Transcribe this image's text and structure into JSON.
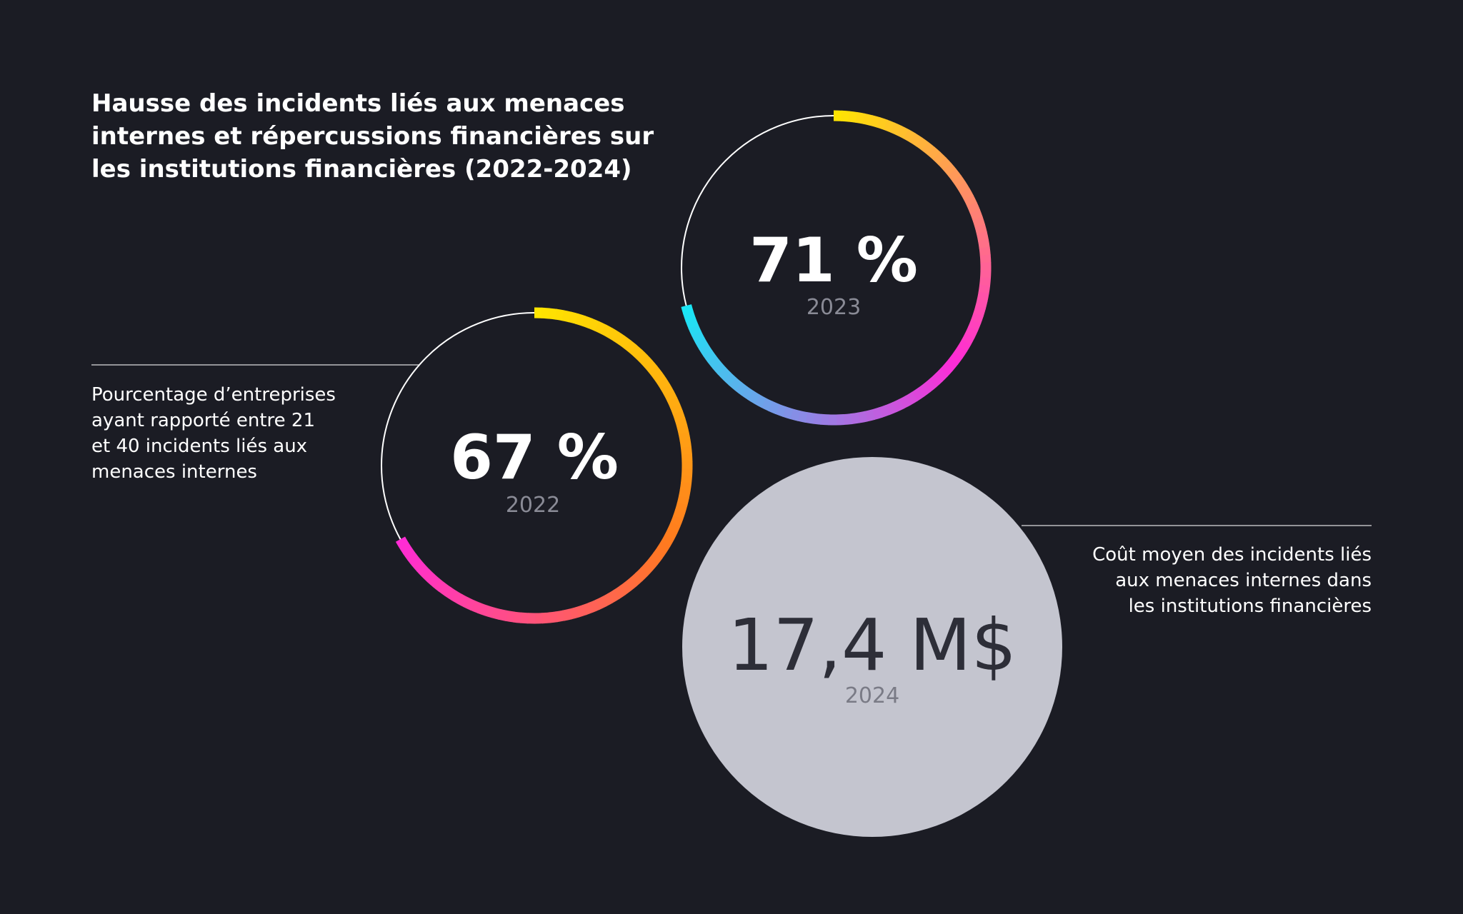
{
  "title": {
    "lines": [
      "Hausse des incidents liés aux menaces",
      "internes et répercussions financières sur",
      "les institutions financières (2022-2024)"
    ]
  },
  "left_description": {
    "lines": [
      "Pourcentage d’entreprises",
      "ayant rapporté entre 21",
      "et 40 incidents liés aux",
      "menaces internes"
    ]
  },
  "right_description": {
    "lines": [
      "Coût moyen des incidents liés",
      "aux menaces internes dans",
      "les institutions financières"
    ]
  },
  "colors": {
    "background": "#1b1c24",
    "yellow": "#ffe600",
    "orange": "#ff7a1f",
    "magenta": "#ff2bd6",
    "cyan": "#17e8f5",
    "ring_track": "#ffffff",
    "bubble_fill": "#c4c5cf",
    "bubble_text": "#2d2e38",
    "year_text": "#8a8b96"
  },
  "chart_data": [
    {
      "type": "pie",
      "subtype": "progress-ring",
      "value": 67,
      "label": "67 %",
      "year": "2022",
      "gradient": [
        "yellow",
        "orange",
        "magenta"
      ]
    },
    {
      "type": "pie",
      "subtype": "progress-ring",
      "value": 71,
      "label": "71 %",
      "year": "2023",
      "gradient": [
        "yellow",
        "magenta",
        "cyan"
      ]
    },
    {
      "type": "bubble",
      "value": 17.4,
      "label": "17,4 M$",
      "year": "2024"
    }
  ]
}
